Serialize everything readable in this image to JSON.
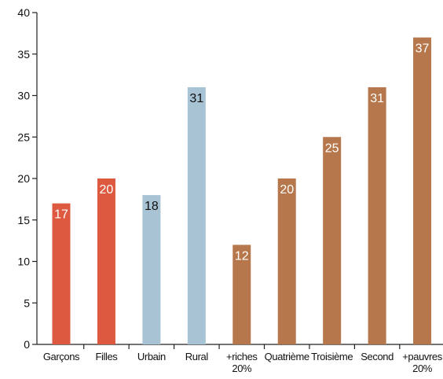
{
  "chart_data": {
    "type": "bar",
    "title": "",
    "xlabel": "",
    "ylabel": "",
    "ylim": [
      0,
      40
    ],
    "yticks": [
      0,
      5,
      10,
      15,
      20,
      25,
      30,
      35,
      40
    ],
    "grid": false,
    "legend": "none",
    "bars": [
      {
        "label": [
          "Garçons"
        ],
        "value": 17,
        "color": "#dd5a40",
        "label_color": "#ffffff"
      },
      {
        "label": [
          "Filles"
        ],
        "value": 20,
        "color": "#dd5a40",
        "label_color": "#ffffff"
      },
      {
        "label": [
          "Urbain"
        ],
        "value": 18,
        "color": "#a7c3d4",
        "label_color": "#111111"
      },
      {
        "label": [
          "Rural"
        ],
        "value": 31,
        "color": "#a7c3d4",
        "label_color": "#111111"
      },
      {
        "label": [
          "+riches",
          "20%"
        ],
        "value": 12,
        "color": "#b5774b",
        "label_color": "#ffffff"
      },
      {
        "label": [
          "Quatrième"
        ],
        "value": 20,
        "color": "#b5774b",
        "label_color": "#ffffff"
      },
      {
        "label": [
          "Troisième"
        ],
        "value": 25,
        "color": "#b5774b",
        "label_color": "#ffffff"
      },
      {
        "label": [
          "Second"
        ],
        "value": 31,
        "color": "#b5774b",
        "label_color": "#ffffff"
      },
      {
        "label": [
          "+pauvres",
          "20%"
        ],
        "value": 37,
        "color": "#b5774b",
        "label_color": "#ffffff"
      }
    ]
  }
}
